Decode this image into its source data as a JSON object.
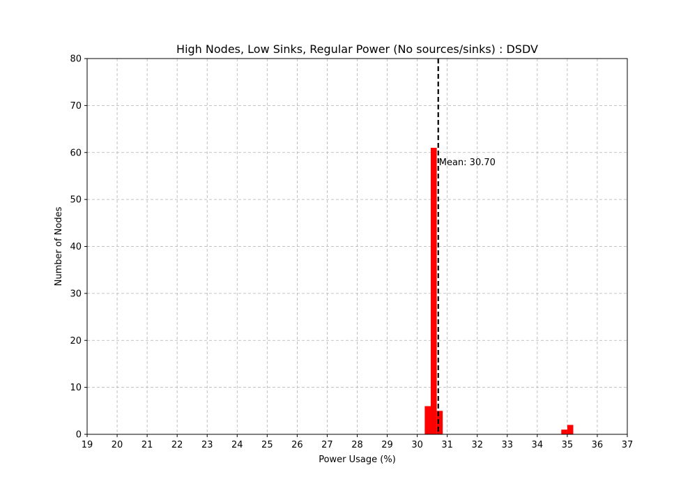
{
  "chart_data": {
    "type": "bar",
    "title": "High Nodes, Low Sinks, Regular Power (No sources/sinks) : DSDV",
    "xlabel": "Power Usage (%)",
    "ylabel": "Number of Nodes",
    "xlim": [
      19,
      37
    ],
    "ylim": [
      0,
      80
    ],
    "xticks": [
      19,
      20,
      21,
      22,
      23,
      24,
      25,
      26,
      27,
      28,
      29,
      30,
      31,
      32,
      33,
      34,
      35,
      36,
      37
    ],
    "yticks": [
      0,
      10,
      20,
      30,
      40,
      50,
      60,
      70,
      80
    ],
    "grid": true,
    "bar_color": "#ff0000",
    "bins": [
      {
        "start": 30.25,
        "end": 30.45,
        "count": 6
      },
      {
        "start": 30.45,
        "end": 30.65,
        "count": 61
      },
      {
        "start": 30.65,
        "end": 30.85,
        "count": 5
      },
      {
        "start": 34.8,
        "end": 35.0,
        "count": 1
      },
      {
        "start": 35.0,
        "end": 35.2,
        "count": 2
      }
    ],
    "mean": {
      "value": 30.7,
      "label": "Mean: 30.70",
      "color": "#000000",
      "label_y": 58
    }
  }
}
